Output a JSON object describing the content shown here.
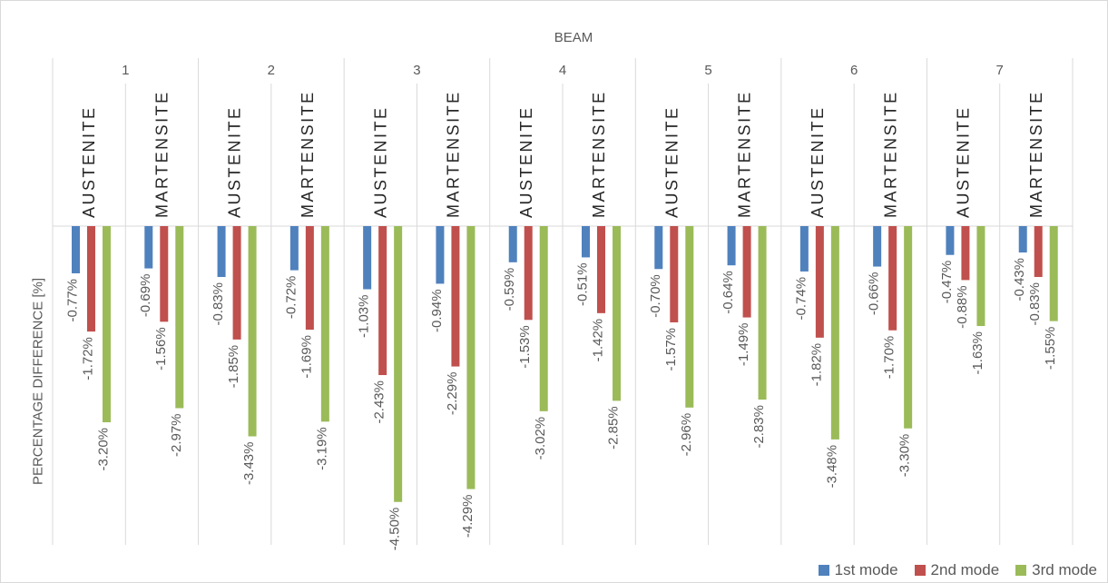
{
  "chart_data": {
    "type": "bar",
    "title": "BEAM",
    "ylabel": "PERCENTAGE DIFFERENCE [%]",
    "groups": [
      "1",
      "2",
      "3",
      "4",
      "5",
      "6",
      "7"
    ],
    "subcategories": [
      "AUSTENITE",
      "MARTENSITE"
    ],
    "series": [
      {
        "name": "1st mode",
        "color": "#4f81bd",
        "values": [
          -0.77,
          -0.69,
          -0.83,
          -0.72,
          -1.03,
          -0.94,
          -0.59,
          -0.51,
          -0.7,
          -0.64,
          -0.74,
          -0.66,
          -0.47,
          -0.43
        ],
        "labels": [
          "-0.77%",
          "-0.69%",
          "-0.83%",
          "-0.72%",
          "-1.03%",
          "-0.94%",
          "-0.59%",
          "-0.51%",
          "-0.70%",
          "-0.64%",
          "-0.74%",
          "-0.66%",
          "-0.47%",
          "-0.43%"
        ]
      },
      {
        "name": "2nd mode",
        "color": "#c0504d",
        "values": [
          -1.72,
          -1.56,
          -1.85,
          -1.69,
          -2.43,
          -2.29,
          -1.53,
          -1.42,
          -1.57,
          -1.49,
          -1.82,
          -1.7,
          -0.88,
          -0.83
        ],
        "labels": [
          "-1.72%",
          "-1.56%",
          "-1.85%",
          "-1.69%",
          "-2.43%",
          "-2.29%",
          "-1.53%",
          "-1.42%",
          "-1.57%",
          "-1.49%",
          "-1.82%",
          "-1.70%",
          "-0.88%",
          "-0.83%"
        ]
      },
      {
        "name": "3rd mode",
        "color": "#9bbb59",
        "values": [
          -3.2,
          -2.97,
          -3.43,
          -3.19,
          -4.5,
          -4.29,
          -3.02,
          -2.85,
          -2.96,
          -2.83,
          -3.48,
          -3.3,
          -1.63,
          -1.55
        ],
        "labels": [
          "-3.20%",
          "-2.97%",
          "-3.43%",
          "-3.19%",
          "-4.50%",
          "-4.29%",
          "-3.02%",
          "-2.85%",
          "-2.96%",
          "-2.83%",
          "-3.48%",
          "-3.30%",
          "-1.63%",
          "-1.55%"
        ]
      }
    ],
    "ylim": [
      -5,
      0
    ],
    "grid": false,
    "legend_position": "bottom-right"
  }
}
